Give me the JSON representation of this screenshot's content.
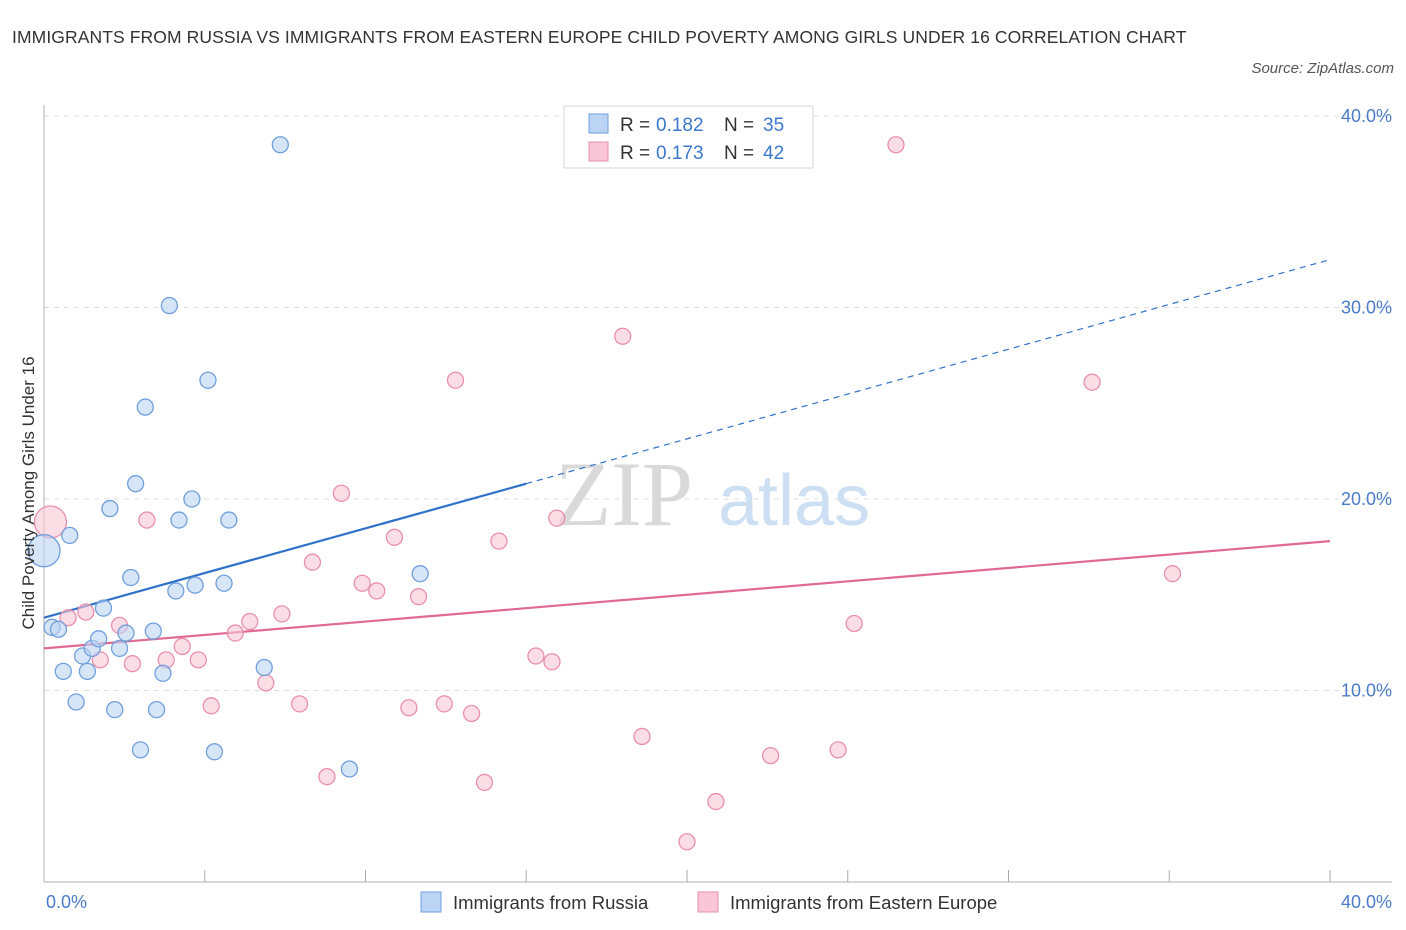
{
  "title": "IMMIGRANTS FROM RUSSIA VS IMMIGRANTS FROM EASTERN EUROPE CHILD POVERTY AMONG GIRLS UNDER 16 CORRELATION CHART",
  "source": "Source: ZipAtlas.com",
  "watermark": {
    "zip": "ZIP",
    "atlas": "atlas"
  },
  "colors": {
    "russia_fill": "#bcd4f3",
    "russia_stroke": "#6f9fdc",
    "russia_line": "#2f72c9",
    "ee_fill": "#f8c6d6",
    "ee_stroke": "#e98fac",
    "ee_line": "#e06a95",
    "grid": "#dddddd",
    "axis_label": "#4a7cc7"
  },
  "legend": {
    "r_label": "R = ",
    "n_label": "N = ",
    "rows": [
      {
        "r": "0.182",
        "n": "35"
      },
      {
        "r": "0.173",
        "n": "42"
      }
    ]
  },
  "chart_data": {
    "type": "scatter",
    "title": "IMMIGRANTS FROM RUSSIA VS IMMIGRANTS FROM EASTERN EUROPE CHILD POVERTY AMONG GIRLS UNDER 16 CORRELATION CHART",
    "xlabel": "",
    "ylabel": "Child Poverty Among Girls Under 16",
    "xlim": [
      0,
      40
    ],
    "ylim": [
      0,
      40
    ],
    "x_tick_labels": [
      "0.0%",
      "40.0%"
    ],
    "y_ticks": [
      10,
      20,
      30,
      40
    ],
    "y_tick_labels": [
      "10.0%",
      "20.0%",
      "30.0%",
      "40.0%"
    ],
    "grid": true,
    "series": [
      {
        "name": "Immigrants from Russia",
        "R": 0.182,
        "N": 35,
        "trend": {
          "x0": 0,
          "y0": 13.8,
          "x1": 15.0,
          "y1": 20.8,
          "dashed_to_x": 40,
          "dashed_to_y": 32.5
        },
        "points": [
          {
            "x": 0.0,
            "y": 17.3,
            "big": true
          },
          {
            "x": 0.25,
            "y": 13.3
          },
          {
            "x": 0.45,
            "y": 13.2
          },
          {
            "x": 0.6,
            "y": 11.0
          },
          {
            "x": 0.8,
            "y": 18.1
          },
          {
            "x": 1.0,
            "y": 9.4
          },
          {
            "x": 1.2,
            "y": 11.8
          },
          {
            "x": 1.35,
            "y": 11.0
          },
          {
            "x": 1.5,
            "y": 12.2
          },
          {
            "x": 1.7,
            "y": 12.7
          },
          {
            "x": 1.85,
            "y": 14.3
          },
          {
            "x": 2.05,
            "y": 19.5
          },
          {
            "x": 2.2,
            "y": 9.0
          },
          {
            "x": 2.35,
            "y": 12.2
          },
          {
            "x": 2.55,
            "y": 13.0
          },
          {
            "x": 2.7,
            "y": 15.9
          },
          {
            "x": 2.85,
            "y": 20.8
          },
          {
            "x": 3.0,
            "y": 6.9
          },
          {
            "x": 3.15,
            "y": 24.8
          },
          {
            "x": 3.4,
            "y": 13.1
          },
          {
            "x": 3.5,
            "y": 9.0
          },
          {
            "x": 3.7,
            "y": 10.9
          },
          {
            "x": 3.9,
            "y": 30.1
          },
          {
            "x": 4.1,
            "y": 15.2
          },
          {
            "x": 4.2,
            "y": 18.9
          },
          {
            "x": 4.6,
            "y": 20.0
          },
          {
            "x": 4.7,
            "y": 15.5
          },
          {
            "x": 5.1,
            "y": 26.2
          },
          {
            "x": 5.3,
            "y": 6.8
          },
          {
            "x": 5.6,
            "y": 15.6
          },
          {
            "x": 5.75,
            "y": 18.9
          },
          {
            "x": 6.85,
            "y": 11.2
          },
          {
            "x": 7.35,
            "y": 38.5
          },
          {
            "x": 9.5,
            "y": 5.9
          },
          {
            "x": 11.7,
            "y": 16.1
          }
        ]
      },
      {
        "name": "Immigrants from Eastern Europe",
        "R": 0.173,
        "N": 42,
        "trend": {
          "x0": 0,
          "y0": 12.2,
          "x1": 40,
          "y1": 17.8
        },
        "points": [
          {
            "x": 0.2,
            "y": 18.8,
            "big": true
          },
          {
            "x": 0.75,
            "y": 13.8
          },
          {
            "x": 1.3,
            "y": 14.1
          },
          {
            "x": 1.75,
            "y": 11.6
          },
          {
            "x": 2.35,
            "y": 13.4
          },
          {
            "x": 2.75,
            "y": 11.4
          },
          {
            "x": 3.2,
            "y": 18.9
          },
          {
            "x": 3.8,
            "y": 11.6
          },
          {
            "x": 4.3,
            "y": 12.3
          },
          {
            "x": 4.8,
            "y": 11.6
          },
          {
            "x": 5.2,
            "y": 9.2
          },
          {
            "x": 5.95,
            "y": 13.0
          },
          {
            "x": 6.4,
            "y": 13.6
          },
          {
            "x": 6.9,
            "y": 10.4
          },
          {
            "x": 7.4,
            "y": 14.0
          },
          {
            "x": 7.95,
            "y": 9.3
          },
          {
            "x": 8.35,
            "y": 16.7
          },
          {
            "x": 8.8,
            "y": 5.5
          },
          {
            "x": 9.25,
            "y": 20.3
          },
          {
            "x": 9.9,
            "y": 15.6
          },
          {
            "x": 10.35,
            "y": 15.2
          },
          {
            "x": 10.9,
            "y": 18.0
          },
          {
            "x": 11.35,
            "y": 9.1
          },
          {
            "x": 11.65,
            "y": 14.9
          },
          {
            "x": 12.45,
            "y": 9.3
          },
          {
            "x": 12.8,
            "y": 26.2
          },
          {
            "x": 13.3,
            "y": 8.8
          },
          {
            "x": 13.7,
            "y": 5.2
          },
          {
            "x": 14.15,
            "y": 17.8
          },
          {
            "x": 15.3,
            "y": 11.8
          },
          {
            "x": 15.8,
            "y": 11.5
          },
          {
            "x": 15.95,
            "y": 19.0
          },
          {
            "x": 18.0,
            "y": 28.5
          },
          {
            "x": 18.6,
            "y": 7.6
          },
          {
            "x": 20.0,
            "y": 2.1
          },
          {
            "x": 20.9,
            "y": 4.2
          },
          {
            "x": 22.6,
            "y": 6.6
          },
          {
            "x": 24.7,
            "y": 6.9
          },
          {
            "x": 25.2,
            "y": 13.5
          },
          {
            "x": 26.5,
            "y": 38.5
          },
          {
            "x": 32.6,
            "y": 26.1
          },
          {
            "x": 35.1,
            "y": 16.1
          }
        ]
      }
    ]
  }
}
